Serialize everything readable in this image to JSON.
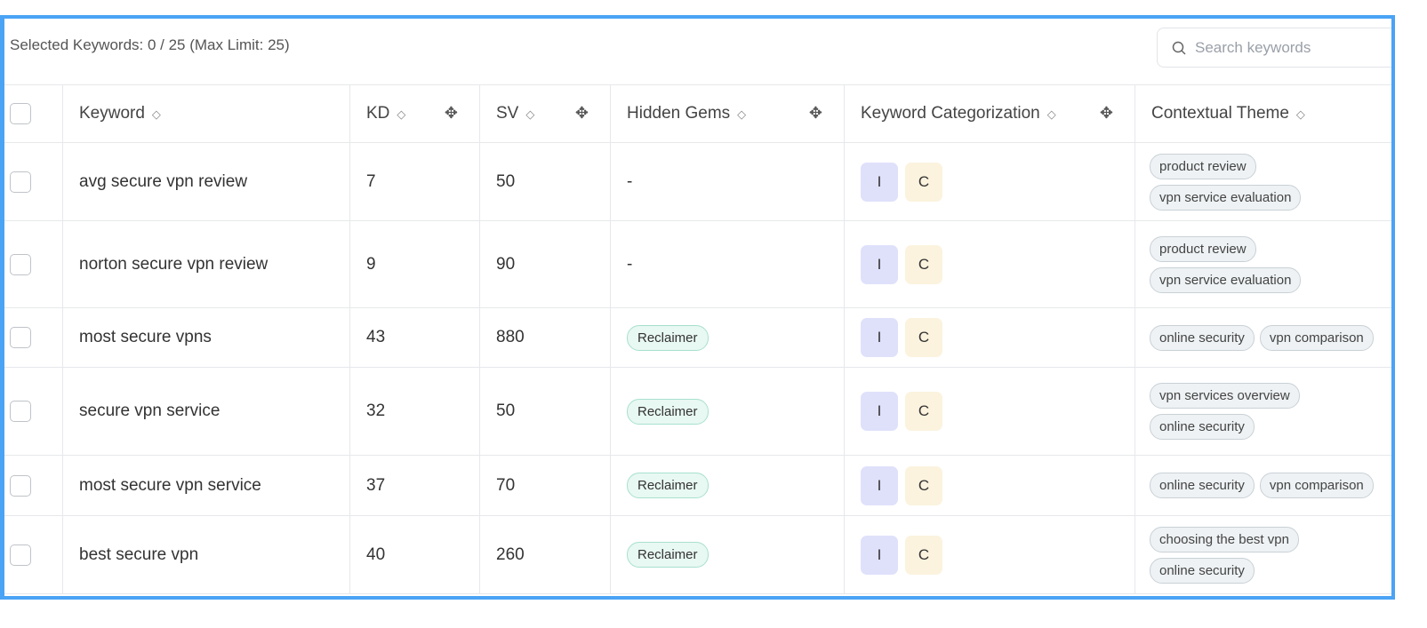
{
  "header": {
    "selected_text": "Selected Keywords: 0 / 25 (Max Limit: 25)",
    "search_placeholder": "Search keywords"
  },
  "columns": [
    "Keyword",
    "KD",
    "SV",
    "Hidden Gems",
    "Keyword Categorization",
    "Contextual Theme"
  ],
  "rows": [
    {
      "keyword": "avg secure vpn review",
      "kd": "7",
      "sv": "50",
      "hidden_gem": "-",
      "cats": [
        "I",
        "C"
      ],
      "themes": [
        "product review",
        "vpn service evaluation"
      ]
    },
    {
      "keyword": "norton secure vpn review",
      "kd": "9",
      "sv": "90",
      "hidden_gem": "-",
      "cats": [
        "I",
        "C"
      ],
      "themes": [
        "product review",
        "vpn service evaluation"
      ]
    },
    {
      "keyword": "most secure vpns",
      "kd": "43",
      "sv": "880",
      "hidden_gem": "Reclaimer",
      "cats": [
        "I",
        "C"
      ],
      "themes": [
        "online security",
        "vpn comparison"
      ]
    },
    {
      "keyword": "secure vpn service",
      "kd": "32",
      "sv": "50",
      "hidden_gem": "Reclaimer",
      "cats": [
        "I",
        "C"
      ],
      "themes": [
        "vpn services overview",
        "online security"
      ]
    },
    {
      "keyword": "most secure vpn service",
      "kd": "37",
      "sv": "70",
      "hidden_gem": "Reclaimer",
      "cats": [
        "I",
        "C"
      ],
      "themes": [
        "online security",
        "vpn comparison"
      ]
    },
    {
      "keyword": "best secure vpn",
      "kd": "40",
      "sv": "260",
      "hidden_gem": "Reclaimer",
      "cats": [
        "I",
        "C"
      ],
      "themes": [
        "choosing the best vpn",
        "online security"
      ]
    }
  ],
  "colors": {
    "frame": "#4aa3f5",
    "intent_i": "#dfe1fb",
    "intent_c": "#fbf3de",
    "gem": "#e8f8f2"
  }
}
